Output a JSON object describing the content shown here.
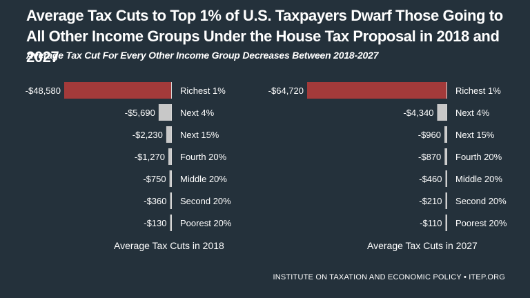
{
  "title": "Average Tax Cuts to Top 1% of U.S. Taxpayers Dwarf Those Going to All Other Income Groups Under the House Tax Proposal in 2018 and 2027",
  "subtitle": "Average Tax Cut For Every Other Income Group Decreases Between 2018-2027",
  "footer": "INSTITUTE ON TAXATION AND ECONOMIC POLICY • ITEP.ORG",
  "colors": {
    "background": "#24313b",
    "highlight": "#a33a3a",
    "bar": "#c8c8c8"
  },
  "chart_data": [
    {
      "type": "bar",
      "orientation": "horizontal",
      "title": "Average Tax Cuts in 2018",
      "categories": [
        "Richest 1%",
        "Next 4%",
        "Next 15%",
        "Fourth 20%",
        "Middle 20%",
        "Second 20%",
        "Poorest 20%"
      ],
      "values": [
        -48580,
        -5690,
        -2230,
        -1270,
        -750,
        -360,
        -130
      ],
      "labels": [
        "-$48,580",
        "-$5,690",
        "-$2,230",
        "-$1,270",
        "-$750",
        "-$360",
        "-$130"
      ],
      "highlight_index": 0,
      "xlim": [
        -48580,
        0
      ]
    },
    {
      "type": "bar",
      "orientation": "horizontal",
      "title": "Average Tax Cuts in 2027",
      "categories": [
        "Richest 1%",
        "Next 4%",
        "Next 15%",
        "Fourth 20%",
        "Middle 20%",
        "Second 20%",
        "Poorest 20%"
      ],
      "values": [
        -64720,
        -4340,
        -960,
        -870,
        -460,
        -210,
        -110
      ],
      "labels": [
        "-$64,720",
        "-$4,340",
        "-$960",
        "-$870",
        "-$460",
        "-$210",
        "-$110"
      ],
      "highlight_index": 0,
      "xlim": [
        -64720,
        0
      ]
    }
  ]
}
